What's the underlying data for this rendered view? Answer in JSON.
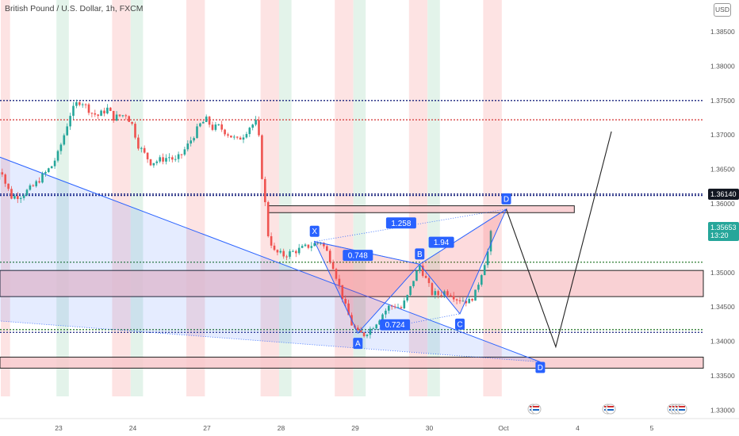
{
  "header": {
    "title": "British Pound / U.S. Dollar, 1h, FXCM",
    "currency": "USD"
  },
  "price_tags": {
    "level": "1.36140",
    "last": "1.35653",
    "countdown": "13:20"
  },
  "colors": {
    "up": "#26a69a",
    "down": "#ef5350",
    "pattern_blue": "#2962ff",
    "pattern_red": "#f23645",
    "zone_fill": "#f7c5c9",
    "session_red": "#fde3e3",
    "session_green": "#e3f3ea"
  },
  "chart_data": {
    "type": "candlestick",
    "ylim": [
      1.3325,
      1.3895
    ],
    "y_ticks": [
      "1.38500",
      "1.38000",
      "1.37500",
      "1.37000",
      "1.36500",
      "1.36000",
      "1.35500",
      "1.35000",
      "1.34500",
      "1.34000",
      "1.33500",
      "1.33000"
    ],
    "y_tick_values": [
      1.385,
      1.38,
      1.375,
      1.37,
      1.365,
      1.36,
      1.355,
      1.35,
      1.345,
      1.34,
      1.335,
      1.33
    ],
    "x_ticks": [
      "23",
      "24",
      "27",
      "28",
      "29",
      "30",
      "Oct",
      "4",
      "5"
    ],
    "x_tick_days": [
      0,
      1,
      2,
      3,
      4,
      5,
      6,
      7,
      8
    ],
    "candle_hours": 1,
    "path": [
      [
        0,
        1.3635
      ],
      [
        1.5,
        1.3655
      ],
      [
        3,
        1.363
      ],
      [
        5,
        1.361
      ],
      [
        8,
        1.3612
      ],
      [
        12,
        1.3625
      ],
      [
        15,
        1.364
      ],
      [
        18,
        1.3655
      ],
      [
        20,
        1.3672
      ],
      [
        22,
        1.37
      ],
      [
        24,
        1.373
      ],
      [
        26,
        1.3745
      ],
      [
        27.5,
        1.375
      ],
      [
        29,
        1.3742
      ],
      [
        31,
        1.3732
      ],
      [
        33,
        1.3728
      ],
      [
        36,
        1.3738
      ],
      [
        38,
        1.3725
      ],
      [
        42,
        1.373
      ],
      [
        44,
        1.3715
      ],
      [
        46,
        1.3685
      ],
      [
        48,
        1.3672
      ],
      [
        50,
        1.366
      ],
      [
        52,
        1.3662
      ],
      [
        54,
        1.3665
      ],
      [
        56,
        1.3668
      ],
      [
        58,
        1.3662
      ],
      [
        60,
        1.3672
      ],
      [
        62,
        1.3685
      ],
      [
        64,
        1.37
      ],
      [
        66,
        1.3715
      ],
      [
        68,
        1.3722
      ],
      [
        70,
        1.371
      ],
      [
        72,
        1.3712
      ],
      [
        74,
        1.3705
      ],
      [
        76,
        1.3698
      ],
      [
        78,
        1.3692
      ],
      [
        80,
        1.37
      ],
      [
        82,
        1.3712
      ],
      [
        84,
        1.3718
      ],
      [
        85,
        1.3695
      ],
      [
        86,
        1.364
      ],
      [
        87,
        1.36
      ],
      [
        88,
        1.3555
      ],
      [
        90,
        1.353
      ],
      [
        93,
        1.3525
      ],
      [
        96,
        1.353
      ],
      [
        99,
        1.3535
      ],
      [
        102,
        1.354
      ],
      [
        105,
        1.3545
      ],
      [
        107,
        1.353
      ],
      [
        109,
        1.351
      ],
      [
        111,
        1.348
      ],
      [
        113,
        1.345
      ],
      [
        115,
        1.3425
      ],
      [
        117,
        1.3412
      ],
      [
        119,
        1.341
      ],
      [
        121,
        1.3418
      ],
      [
        123,
        1.3428
      ],
      [
        125,
        1.344
      ],
      [
        127,
        1.345
      ],
      [
        129,
        1.3452
      ],
      [
        131,
        1.3448
      ],
      [
        133,
        1.3465
      ],
      [
        135,
        1.349
      ],
      [
        137,
        1.351
      ],
      [
        139,
        1.349
      ],
      [
        141,
        1.347
      ],
      [
        143,
        1.3468
      ],
      [
        145,
        1.3472
      ],
      [
        147,
        1.347
      ],
      [
        149,
        1.3462
      ],
      [
        151,
        1.346
      ],
      [
        153,
        1.3458
      ],
      [
        155,
        1.347
      ],
      [
        157,
        1.35
      ],
      [
        159,
        1.353
      ],
      [
        160,
        1.3556
      ]
    ],
    "horizontal_lines": [
      {
        "style": "dotted",
        "color": "#1a237e",
        "y": 1.375
      },
      {
        "style": "dotted",
        "color": "#d32f2f",
        "y": 1.3722
      },
      {
        "style": "dotted",
        "color": "#1a237e",
        "y": 1.3614
      },
      {
        "style": "dotted",
        "color": "#1a237e",
        "y": 1.3612
      },
      {
        "style": "dotted",
        "color": "#2e7d32",
        "y": 1.3515
      },
      {
        "style": "dotted",
        "color": "#2e7d32",
        "y": 1.3417
      },
      {
        "style": "dotted",
        "color": "#1a237e",
        "y": 1.3413
      }
    ],
    "zones": [
      {
        "y_top": 1.3503,
        "y_bottom": 1.3465,
        "x_from": "left",
        "x_to": "right"
      },
      {
        "y_top": 1.3377,
        "y_bottom": 1.3361,
        "x_from": "left",
        "x_to": "right"
      },
      {
        "y_top": 1.3597,
        "y_bottom": 1.3587,
        "x_from": 88,
        "x_to": 187
      }
    ],
    "sessions": {
      "red_hours": [
        [
          0,
          3
        ],
        [
          36,
          42
        ],
        [
          60,
          66
        ],
        [
          84,
          90
        ],
        [
          108,
          114
        ],
        [
          132,
          138
        ],
        [
          156,
          162
        ]
      ],
      "green_hours": [
        [
          18,
          22
        ],
        [
          42,
          46
        ],
        [
          90,
          94
        ],
        [
          114,
          118
        ],
        [
          138,
          142
        ]
      ]
    },
    "harmonic_pattern": {
      "points": [
        {
          "label": "X",
          "x": 103,
          "y": 1.3545
        },
        {
          "label": "A",
          "x": 117,
          "y": 1.3412
        },
        {
          "label": "B",
          "x": 137,
          "y": 1.3512
        },
        {
          "label": "C",
          "x": 150,
          "y": 1.344
        },
        {
          "label": "D",
          "x": 165,
          "y": 1.3592
        }
      ],
      "ratios": [
        {
          "text": "0.748",
          "x": 117,
          "y": 1.3525
        },
        {
          "text": "0.724",
          "x": 129,
          "y": 1.3424
        },
        {
          "text": "1.258",
          "x": 131,
          "y": 1.3572
        },
        {
          "text": "1.94",
          "x": 144,
          "y": 1.3544
        }
      ]
    },
    "wedge": {
      "upper": [
        [
          -6,
          1.368
        ],
        [
          176,
          1.337
        ]
      ],
      "lower": [
        [
          -6,
          1.3432
        ],
        [
          176,
          1.337
        ]
      ]
    },
    "projection": {
      "points": [
        [
          165,
          1.3592
        ],
        [
          181,
          1.3392
        ],
        [
          199,
          1.3705
        ]
      ],
      "end_label": "D",
      "end_label_pos": [
        176,
        1.3362
      ]
    },
    "bottom_events": {
      "count_groups": [
        1,
        1,
        2
      ]
    }
  }
}
